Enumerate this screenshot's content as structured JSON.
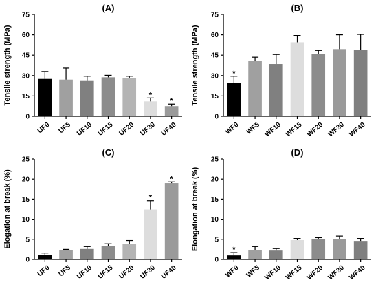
{
  "figure_colors": [
    "#000000",
    "#a0a0a0",
    "#808080",
    "#8c8c8c",
    "#b4b4b4",
    "#dddddd",
    "#9a9a9a"
  ],
  "chart_data": [
    {
      "type": "bar",
      "panel": "(A)",
      "ylabel": "Tensile strength (MPa)",
      "xlabel": "",
      "ylim": [
        0,
        75
      ],
      "yticks": [
        0,
        15,
        30,
        45,
        60,
        75
      ],
      "categories": [
        "UF0",
        "UF5",
        "UF10",
        "UF15",
        "UF20",
        "UF30",
        "UF40"
      ],
      "values": [
        27.5,
        27,
        26.5,
        28.7,
        28,
        11,
        7.5
      ],
      "errors": [
        5.5,
        8.5,
        3,
        1.5,
        1.5,
        2.5,
        1.5
      ],
      "significance": [
        "",
        "",
        "",
        "",
        "",
        "*",
        "*"
      ],
      "colors": [
        "#000000",
        "#a0a0a0",
        "#808080",
        "#8c8c8c",
        "#b4b4b4",
        "#dddddd",
        "#9a9a9a"
      ]
    },
    {
      "type": "bar",
      "panel": "(B)",
      "ylabel": "Tensile strength (MPa)",
      "xlabel": "",
      "ylim": [
        0,
        75
      ],
      "yticks": [
        0,
        15,
        30,
        45,
        60,
        75
      ],
      "categories": [
        "WF0",
        "WF5",
        "WF10",
        "WF15",
        "WF20",
        "WF30",
        "WF40"
      ],
      "values": [
        24.5,
        41,
        38.5,
        54.5,
        46,
        49.5,
        48.8
      ],
      "errors": [
        5,
        2.5,
        7,
        5,
        2.5,
        10.5,
        11.5
      ],
      "significance": [
        "*",
        "",
        "",
        "",
        "",
        "",
        ""
      ],
      "colors": [
        "#000000",
        "#a0a0a0",
        "#808080",
        "#dddddd",
        "#8c8c8c",
        "#9a9a9a",
        "#808080"
      ]
    },
    {
      "type": "bar",
      "panel": "(C)",
      "ylabel": "Elogation at break (%)",
      "xlabel": "",
      "ylim": [
        0,
        25
      ],
      "yticks": [
        0,
        5,
        10,
        15,
        20,
        25
      ],
      "categories": [
        "UF0",
        "UF5",
        "UF10",
        "UF15",
        "UF20",
        "UF30",
        "UF40"
      ],
      "values": [
        1.1,
        2.3,
        2.6,
        3.4,
        3.9,
        12.4,
        19
      ],
      "errors": [
        0.5,
        0.2,
        0.6,
        0.5,
        0.8,
        2.2,
        0.3
      ],
      "significance": [
        "",
        "",
        "",
        "",
        "",
        "*",
        "*"
      ],
      "colors": [
        "#000000",
        "#a0a0a0",
        "#808080",
        "#8c8c8c",
        "#b4b4b4",
        "#dddddd",
        "#9a9a9a"
      ]
    },
    {
      "type": "bar",
      "panel": "(D)",
      "ylabel": "Elongation at break (%)",
      "xlabel": "",
      "ylim": [
        0,
        25
      ],
      "yticks": [
        0,
        5,
        10,
        15,
        20,
        25
      ],
      "categories": [
        "WF0",
        "WF5",
        "WF10",
        "WF15",
        "WF20",
        "WF30",
        "WF40"
      ],
      "values": [
        1,
        2.3,
        2.2,
        4.8,
        5,
        5,
        4.6
      ],
      "errors": [
        0.7,
        0.9,
        0.5,
        0.4,
        0.4,
        0.8,
        0.6
      ],
      "significance": [
        "*",
        "",
        "",
        "",
        "",
        "",
        ""
      ],
      "colors": [
        "#000000",
        "#a0a0a0",
        "#808080",
        "#dddddd",
        "#8c8c8c",
        "#9a9a9a",
        "#808080"
      ]
    }
  ]
}
